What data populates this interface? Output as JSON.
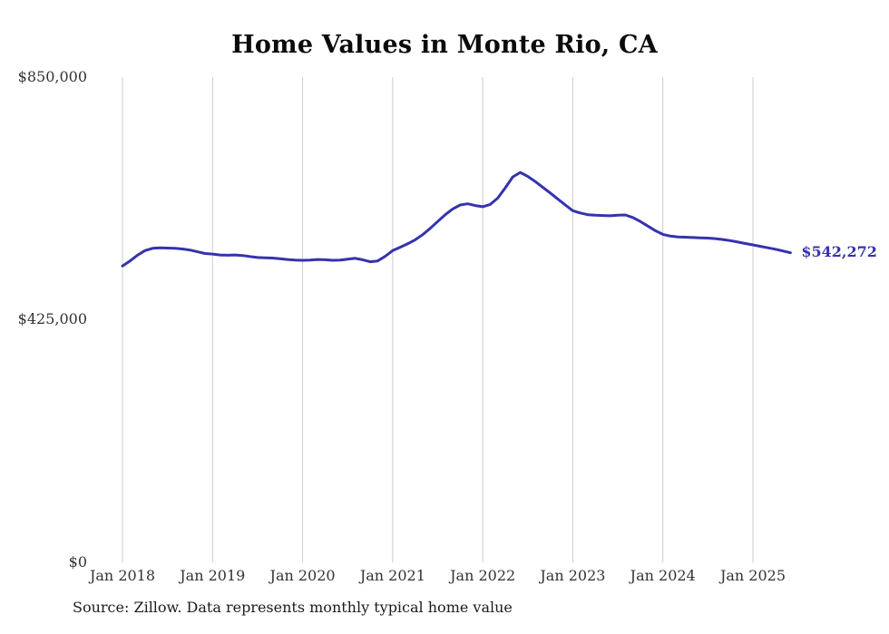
{
  "page": {
    "source_note": "Source: Zillow. Data represents monthly typical home value"
  },
  "chart_data": {
    "type": "line",
    "title": "Home Values in Monte Rio, CA",
    "xlabel": "",
    "ylabel": "",
    "ylim": [
      0,
      850000
    ],
    "grid": "vertical-only",
    "legend": "none",
    "line_color": "#3533ad",
    "gridline_color": "#cccccc",
    "y_tick_labels": [
      "$850,000",
      "$425,000",
      "$0"
    ],
    "x_tick_labels": [
      "Jan 2018",
      "Jan 2019",
      "Jan 2020",
      "Jan 2021",
      "Jan 2022",
      "Jan 2023",
      "Jan 2024",
      "Jan 2025"
    ],
    "end_label": "$542,272",
    "end_value": 542272,
    "categories": [
      "2018-01",
      "2018-02",
      "2018-03",
      "2018-04",
      "2018-05",
      "2018-06",
      "2018-07",
      "2018-08",
      "2018-09",
      "2018-10",
      "2018-11",
      "2018-12",
      "2019-01",
      "2019-02",
      "2019-03",
      "2019-04",
      "2019-05",
      "2019-06",
      "2019-07",
      "2019-08",
      "2019-09",
      "2019-10",
      "2019-11",
      "2019-12",
      "2020-01",
      "2020-02",
      "2020-03",
      "2020-04",
      "2020-05",
      "2020-06",
      "2020-07",
      "2020-08",
      "2020-09",
      "2020-10",
      "2020-11",
      "2020-12",
      "2021-01",
      "2021-02",
      "2021-03",
      "2021-04",
      "2021-05",
      "2021-06",
      "2021-07",
      "2021-08",
      "2021-09",
      "2021-10",
      "2021-11",
      "2021-12",
      "2022-01",
      "2022-02",
      "2022-03",
      "2022-04",
      "2022-05",
      "2022-06",
      "2022-07",
      "2022-08",
      "2022-09",
      "2022-10",
      "2022-11",
      "2022-12",
      "2023-01",
      "2023-02",
      "2023-03",
      "2023-04",
      "2023-05",
      "2023-06",
      "2023-07",
      "2023-08",
      "2023-09",
      "2023-10",
      "2023-11",
      "2023-12",
      "2024-01",
      "2024-02",
      "2024-03",
      "2024-04",
      "2024-05",
      "2024-06",
      "2024-07",
      "2024-08",
      "2024-09",
      "2024-10",
      "2024-11",
      "2024-12",
      "2025-01",
      "2025-02",
      "2025-03",
      "2025-04",
      "2025-05",
      "2025-06"
    ],
    "series": [
      {
        "name": "Typical home value",
        "values": [
          519000,
          528000,
          538000,
          546000,
          550000,
          551000,
          550500,
          550000,
          549000,
          547000,
          544000,
          541000,
          540000,
          538500,
          538000,
          538500,
          537500,
          535500,
          534000,
          533500,
          533000,
          532000,
          530500,
          529500,
          529000,
          529500,
          530500,
          530000,
          529000,
          529500,
          531000,
          532500,
          530000,
          526500,
          528000,
          536000,
          546000,
          552000,
          558000,
          565000,
          574000,
          585000,
          597000,
          609000,
          619000,
          626000,
          628000,
          625000,
          623000,
          627000,
          638000,
          656000,
          675000,
          683000,
          676000,
          667000,
          657000,
          647000,
          636500,
          626000,
          616000,
          612000,
          609000,
          608000,
          607500,
          607000,
          608000,
          608500,
          604000,
          597000,
          589000,
          581000,
          574500,
          571500,
          570000,
          569500,
          569000,
          568500,
          568000,
          567000,
          565500,
          563500,
          561000,
          558500,
          556000,
          553500,
          551000,
          548500,
          545500,
          542272
        ]
      }
    ]
  }
}
